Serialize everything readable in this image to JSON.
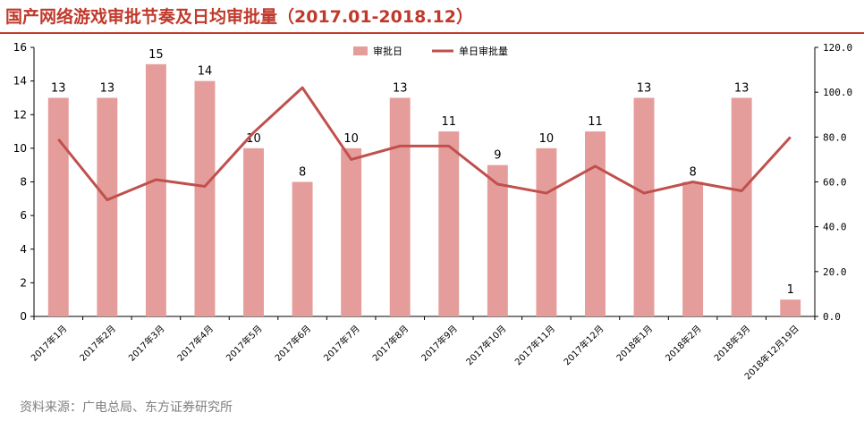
{
  "title": "国产网络游戏审批节奏及日均审批量（2017.01-2018.12）",
  "source": "资料来源：广电总局、东方证券研究所",
  "colors": {
    "bar": "#e59d9b",
    "line": "#c0504d",
    "title": "#c0392b"
  },
  "chart_data": {
    "type": "bar",
    "categories": [
      "2017年1月",
      "2017年2月",
      "2017年3月",
      "2017年4月",
      "2017年5月",
      "2017年6月",
      "2017年7月",
      "2017年8月",
      "2017年9月",
      "2017年10月",
      "2017年11月",
      "2017年12月",
      "2018年1月",
      "2018年2月",
      "2018年3月",
      "2018年12月19日"
    ],
    "series": [
      {
        "name": "审批日",
        "type": "bar",
        "axis": "left",
        "values": [
          13,
          13,
          15,
          14,
          10,
          8,
          10,
          13,
          11,
          9,
          10,
          11,
          13,
          8,
          13,
          1
        ]
      },
      {
        "name": "单日审批量",
        "type": "line",
        "axis": "right",
        "values": [
          79,
          52,
          61,
          58,
          82,
          102,
          70,
          76,
          76,
          59,
          55,
          67,
          55,
          60,
          56,
          80
        ]
      }
    ],
    "y_left": {
      "ylim": [
        0,
        16
      ],
      "ticks": [
        "0",
        "2",
        "4",
        "6",
        "8",
        "10",
        "12",
        "14",
        "16"
      ]
    },
    "y_right": {
      "ylim": [
        0,
        120
      ],
      "ticks": [
        "0.0",
        "20.0",
        "40.0",
        "60.0",
        "80.0",
        "100.0",
        "120.0"
      ]
    },
    "legend_placement": "top-center",
    "grid": false
  }
}
